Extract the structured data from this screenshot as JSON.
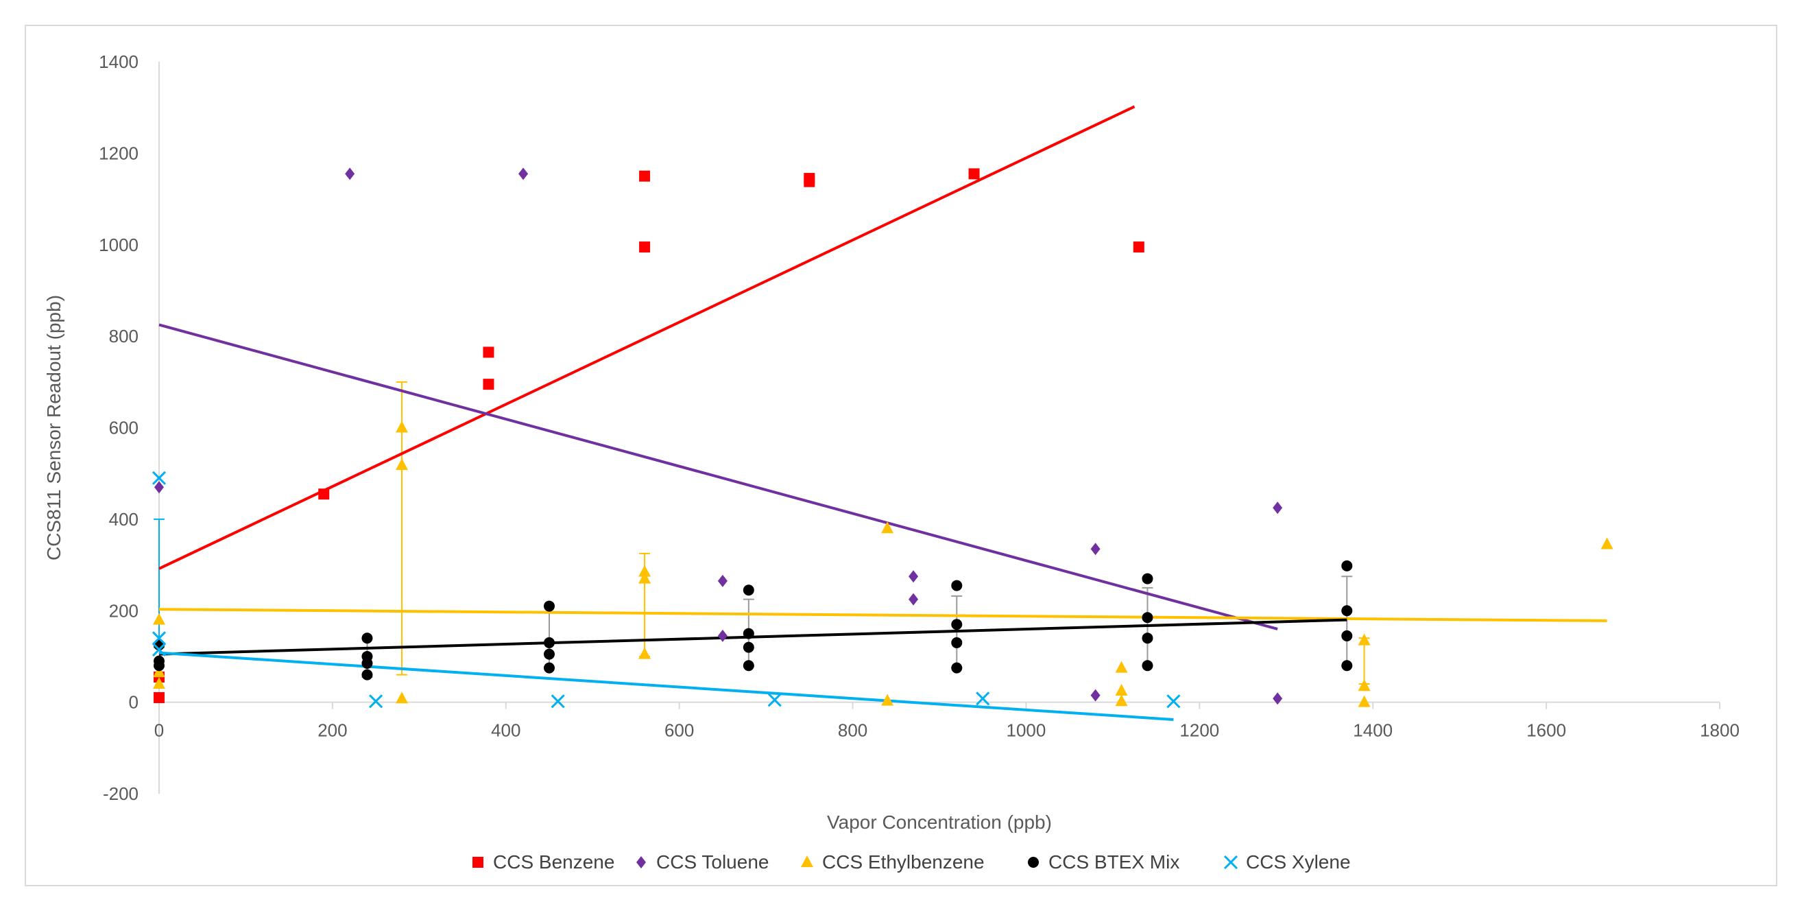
{
  "chart_data": {
    "type": "scatter",
    "title": "",
    "xlabel": "Vapor Concentration (ppb)",
    "ylabel": "CCS811 Sensor Readout (ppb)",
    "xlim": [
      0,
      1800
    ],
    "ylim": [
      -200,
      1400
    ],
    "x_ticks": [
      "0",
      "200",
      "400",
      "600",
      "800",
      "1000",
      "1200",
      "1400",
      "1600",
      "1800"
    ],
    "y_ticks": [
      "-200",
      "0",
      "200",
      "400",
      "600",
      "800",
      "1000",
      "1200",
      "1400"
    ],
    "grid": false,
    "legend_position": "bottom",
    "series": [
      {
        "name": "CCS Benzene",
        "marker": "square",
        "color": "#ff0000",
        "points": [
          [
            0,
            55
          ],
          [
            0,
            10
          ],
          [
            190,
            455
          ],
          [
            380,
            765
          ],
          [
            380,
            695
          ],
          [
            560,
            1150
          ],
          [
            560,
            995
          ],
          [
            750,
            1145
          ],
          [
            750,
            1138
          ],
          [
            940,
            1155
          ],
          [
            1130,
            995
          ]
        ],
        "trendline": {
          "x": [
            0,
            1125
          ],
          "y": [
            292,
            1302
          ]
        }
      },
      {
        "name": "CCS Toluene",
        "marker": "diamond",
        "color": "#7030a0",
        "points": [
          [
            0,
            470
          ],
          [
            220,
            1155
          ],
          [
            420,
            1155
          ],
          [
            650,
            265
          ],
          [
            650,
            145
          ],
          [
            870,
            275
          ],
          [
            870,
            225
          ],
          [
            1080,
            335
          ],
          [
            1080,
            15
          ],
          [
            1290,
            425
          ],
          [
            1290,
            8
          ]
        ],
        "trendline": {
          "x": [
            0,
            1290
          ],
          "y": [
            825,
            160
          ]
        }
      },
      {
        "name": "CCS Ethylbenzene",
        "marker": "triangle",
        "color": "#ffc000",
        "points": [
          [
            0,
            180
          ],
          [
            0,
            65
          ],
          [
            0,
            40
          ],
          [
            280,
            600
          ],
          [
            280,
            518
          ],
          [
            280,
            8
          ],
          [
            560,
            285
          ],
          [
            560,
            270
          ],
          [
            560,
            105
          ],
          [
            840,
            380
          ],
          [
            840,
            3
          ],
          [
            1110,
            75
          ],
          [
            1110,
            25
          ],
          [
            1110,
            2
          ],
          [
            1390,
            135
          ],
          [
            1390,
            35
          ],
          [
            1390,
            0
          ],
          [
            1670,
            345
          ]
        ],
        "trendline": {
          "x": [
            0,
            1670
          ],
          "y": [
            203,
            178
          ]
        },
        "error_bars": [
          [
            280,
            60,
            700
          ],
          [
            560,
            100,
            325
          ],
          [
            1390,
            40,
            140
          ]
        ]
      },
      {
        "name": "CCS BTEX Mix",
        "marker": "circle",
        "color": "#000000",
        "points": [
          [
            0,
            125
          ],
          [
            0,
            90
          ],
          [
            0,
            80
          ],
          [
            240,
            140
          ],
          [
            240,
            100
          ],
          [
            240,
            85
          ],
          [
            240,
            60
          ],
          [
            450,
            210
          ],
          [
            450,
            130
          ],
          [
            450,
            105
          ],
          [
            450,
            75
          ],
          [
            680,
            245
          ],
          [
            680,
            150
          ],
          [
            680,
            120
          ],
          [
            680,
            80
          ],
          [
            920,
            255
          ],
          [
            920,
            170
          ],
          [
            920,
            130
          ],
          [
            920,
            75
          ],
          [
            1140,
            270
          ],
          [
            1140,
            185
          ],
          [
            1140,
            140
          ],
          [
            1140,
            80
          ],
          [
            1370,
            298
          ],
          [
            1370,
            200
          ],
          [
            1370,
            145
          ],
          [
            1370,
            80
          ]
        ],
        "trendline": {
          "x": [
            0,
            1370
          ],
          "y": [
            105,
            180
          ]
        },
        "error_bars": [
          [
            240,
            55,
            140
          ],
          [
            450,
            75,
            195
          ],
          [
            680,
            80,
            225
          ],
          [
            920,
            75,
            232
          ],
          [
            1140,
            80,
            250
          ],
          [
            1370,
            80,
            275
          ]
        ]
      },
      {
        "name": "CCS Xylene",
        "marker": "x",
        "color": "#00b0f0",
        "points": [
          [
            0,
            490
          ],
          [
            0,
            140
          ],
          [
            0,
            115
          ],
          [
            250,
            2
          ],
          [
            460,
            2
          ],
          [
            710,
            5
          ],
          [
            950,
            8
          ],
          [
            1170,
            2
          ]
        ],
        "trendline": {
          "x": [
            0,
            1170
          ],
          "y": [
            108,
            -38
          ]
        },
        "error_bars": [
          [
            0,
            120,
            400
          ]
        ]
      }
    ]
  }
}
